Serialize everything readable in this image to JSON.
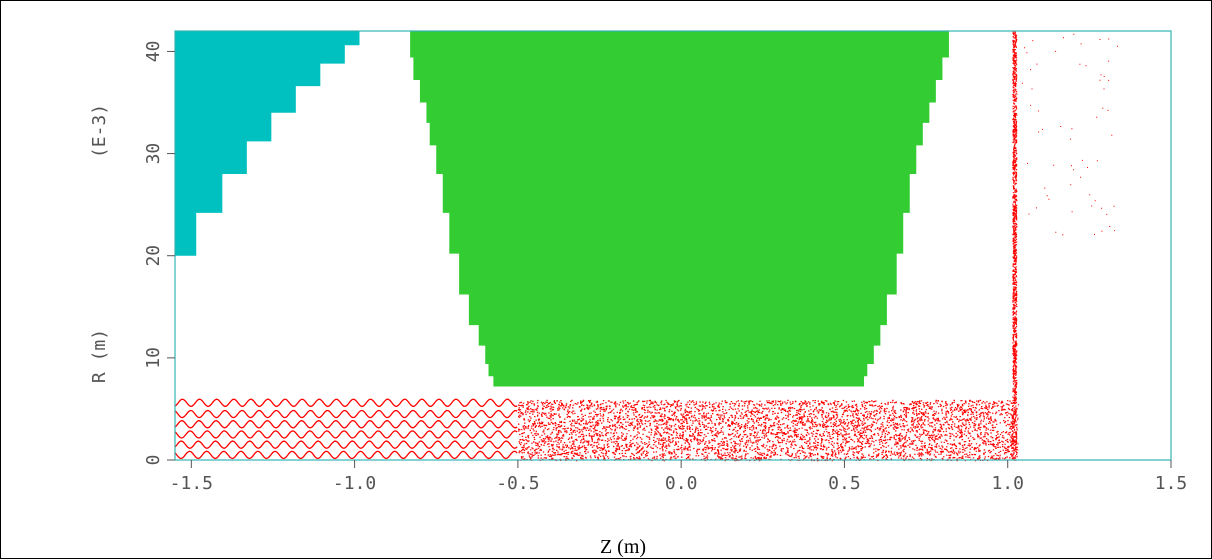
{
  "chart_data": {
    "type": "scatter",
    "title": "",
    "xlabel": "Z (m)",
    "ylabel": "R (m)",
    "ylabel_scale": "(E-3)",
    "xlim": [
      -1.55,
      1.5
    ],
    "ylim": [
      0,
      42
    ],
    "x_ticks": [
      -1.5,
      -1.0,
      -0.5,
      0.0,
      0.5,
      1.0,
      1.5
    ],
    "x_tick_labels": [
      "-1.5",
      "-1.0",
      "-0.5",
      "0.0",
      "0.5",
      "1.0",
      "1.5"
    ],
    "y_ticks": [
      0,
      10,
      20,
      30,
      40
    ],
    "y_tick_labels": [
      "0",
      "10",
      "20",
      "30",
      "40"
    ],
    "grid": false,
    "colors": {
      "axes": "#33b3b3",
      "left_electrode": "#00c0c0",
      "center_electrode": "#33cc33",
      "particles": "#ff0000"
    },
    "regions": [
      {
        "name": "left-electrode",
        "color": "#00c0c0",
        "steps": [
          {
            "z": -1.55,
            "r": 20
          },
          {
            "z": -1.485,
            "r": 24.2
          },
          {
            "z": -1.405,
            "r": 28.0
          },
          {
            "z": -1.33,
            "r": 31.2
          },
          {
            "z": -1.255,
            "r": 34.0
          },
          {
            "z": -1.18,
            "r": 36.6
          },
          {
            "z": -1.105,
            "r": 38.8
          },
          {
            "z": -1.03,
            "r": 40.6
          },
          {
            "z": -0.985,
            "r": 42
          }
        ]
      },
      {
        "name": "center-electrode",
        "color": "#33cc33",
        "r_bottom": 7.2,
        "r_top": 42,
        "profile": [
          {
            "r": 42.0,
            "z_left": -0.83,
            "z_right": 0.82
          },
          {
            "r": 39.4,
            "z_left": -0.82,
            "z_right": 0.8
          },
          {
            "r": 37.2,
            "z_left": -0.8,
            "z_right": 0.78
          },
          {
            "r": 35.0,
            "z_left": -0.78,
            "z_right": 0.76
          },
          {
            "r": 33.0,
            "z_left": -0.77,
            "z_right": 0.74
          },
          {
            "r": 30.8,
            "z_left": -0.75,
            "z_right": 0.72
          },
          {
            "r": 28.0,
            "z_left": -0.73,
            "z_right": 0.7
          },
          {
            "r": 24.2,
            "z_left": -0.71,
            "z_right": 0.68
          },
          {
            "r": 20.2,
            "z_left": -0.68,
            "z_right": 0.66
          },
          {
            "r": 16.2,
            "z_left": -0.65,
            "z_right": 0.63
          },
          {
            "r": 13.2,
            "z_left": -0.62,
            "z_right": 0.61
          },
          {
            "r": 11.2,
            "z_left": -0.6,
            "z_right": 0.59
          },
          {
            "r": 9.4,
            "z_left": -0.59,
            "z_right": 0.57
          },
          {
            "r": 8.2,
            "z_left": -0.575,
            "z_right": 0.56
          }
        ]
      }
    ],
    "series": [
      {
        "description_color": "#ff0000",
        "beam_lines_r": [
          0.5,
          1.5,
          2.5,
          3.5,
          4.5,
          5.6
        ],
        "beam_z_range": [
          -1.55,
          1.02
        ],
        "wall_z": 1.02,
        "wall_r_range": [
          0,
          42
        ]
      }
    ]
  }
}
